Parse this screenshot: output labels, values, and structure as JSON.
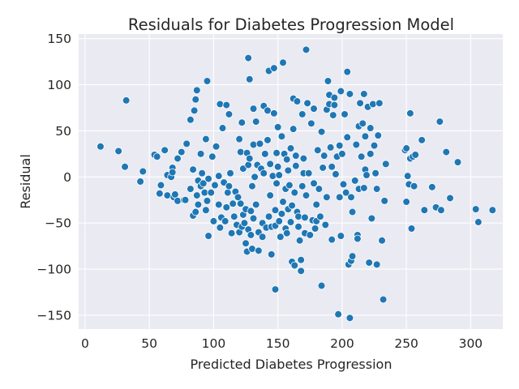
{
  "chart_data": {
    "type": "scatter",
    "title": "Residuals for Diabetes Progression Model",
    "xlabel": "Predicted Diabetes Progression",
    "ylabel": "Residual",
    "xlim": [
      -5,
      325
    ],
    "ylim": [
      -165,
      155
    ],
    "xticks": [
      0,
      50,
      100,
      150,
      200,
      250,
      300
    ],
    "yticks": [
      -150,
      -100,
      -50,
      0,
      50,
      100,
      150
    ],
    "grid": true,
    "colors": {
      "background": "#eaeaf2",
      "point": "#1f77b4"
    },
    "points": [
      [
        12,
        33
      ],
      [
        26,
        28
      ],
      [
        31,
        11
      ],
      [
        32,
        83
      ],
      [
        43,
        -5
      ],
      [
        45,
        6
      ],
      [
        54,
        24
      ],
      [
        56,
        22
      ],
      [
        58,
        -18
      ],
      [
        59,
        -9
      ],
      [
        62,
        29
      ],
      [
        64,
        -20
      ],
      [
        64,
        2
      ],
      [
        67,
        0
      ],
      [
        68,
        10
      ],
      [
        68,
        5
      ],
      [
        69,
        -22
      ],
      [
        70,
        -19
      ],
      [
        72,
        -26
      ],
      [
        72,
        20
      ],
      [
        75,
        27
      ],
      [
        77,
        -25
      ],
      [
        78,
        -25
      ],
      [
        79,
        36
      ],
      [
        82,
        -13
      ],
      [
        82,
        62
      ],
      [
        84,
        -42
      ],
      [
        84,
        8
      ],
      [
        85,
        72
      ],
      [
        86,
        84
      ],
      [
        86,
        -38
      ],
      [
        87,
        94
      ],
      [
        87,
        -20
      ],
      [
        88,
        -4
      ],
      [
        88,
        -30
      ],
      [
        90,
        -10
      ],
      [
        90,
        25
      ],
      [
        91,
        4
      ],
      [
        92,
        -7
      ],
      [
        93,
        -17
      ],
      [
        94,
        -36
      ],
      [
        94,
        41
      ],
      [
        95,
        -26
      ],
      [
        95,
        104
      ],
      [
        96,
        -64
      ],
      [
        96,
        -2
      ],
      [
        98,
        -17
      ],
      [
        99,
        22
      ],
      [
        100,
        -48
      ],
      [
        101,
        -9
      ],
      [
        102,
        33
      ],
      [
        104,
        -30
      ],
      [
        104,
        1
      ],
      [
        105,
        -55
      ],
      [
        105,
        79
      ],
      [
        106,
        -44
      ],
      [
        107,
        53
      ],
      [
        108,
        -6
      ],
      [
        109,
        -48
      ],
      [
        110,
        -33
      ],
      [
        110,
        78
      ],
      [
        111,
        -17
      ],
      [
        112,
        -10
      ],
      [
        112,
        68
      ],
      [
        113,
        4
      ],
      [
        114,
        -61
      ],
      [
        115,
        -29
      ],
      [
        116,
        -43
      ],
      [
        117,
        -16
      ],
      [
        118,
        -52
      ],
      [
        119,
        -22
      ],
      [
        120,
        41
      ],
      [
        120,
        -60
      ],
      [
        121,
        27
      ],
      [
        121,
        -29
      ],
      [
        122,
        59
      ],
      [
        122,
        -54
      ],
      [
        123,
        9
      ],
      [
        123,
        -41
      ],
      [
        124,
        -50
      ],
      [
        125,
        -72
      ],
      [
        125,
        -35
      ],
      [
        126,
        26
      ],
      [
        126,
        -81
      ],
      [
        127,
        13
      ],
      [
        127,
        129
      ],
      [
        127,
        -57
      ],
      [
        128,
        20
      ],
      [
        128,
        106
      ],
      [
        129,
        -63
      ],
      [
        129,
        -37
      ],
      [
        130,
        -78
      ],
      [
        130,
        -10
      ],
      [
        131,
        35
      ],
      [
        131,
        74
      ],
      [
        131,
        -45
      ],
      [
        132,
        0
      ],
      [
        133,
        -30
      ],
      [
        133,
        60
      ],
      [
        134,
        13
      ],
      [
        135,
        -60
      ],
      [
        135,
        -80
      ],
      [
        136,
        36
      ],
      [
        137,
        9
      ],
      [
        138,
        -50
      ],
      [
        138,
        -65
      ],
      [
        139,
        4
      ],
      [
        139,
        77
      ],
      [
        140,
        25
      ],
      [
        141,
        -55
      ],
      [
        142,
        72
      ],
      [
        142,
        40
      ],
      [
        143,
        -43
      ],
      [
        143,
        115
      ],
      [
        144,
        -20
      ],
      [
        144,
        14
      ],
      [
        145,
        -84
      ],
      [
        145,
        -54
      ],
      [
        146,
        1
      ],
      [
        147,
        118
      ],
      [
        147,
        69
      ],
      [
        148,
        -36
      ],
      [
        148,
        -122
      ],
      [
        148,
        -53
      ],
      [
        149,
        -7
      ],
      [
        149,
        26
      ],
      [
        150,
        54
      ],
      [
        150,
        11
      ],
      [
        151,
        -48
      ],
      [
        151,
        2
      ],
      [
        152,
        -65
      ],
      [
        153,
        44
      ],
      [
        153,
        -40
      ],
      [
        154,
        124
      ],
      [
        154,
        -27
      ],
      [
        155,
        25
      ],
      [
        156,
        -13
      ],
      [
        156,
        -56
      ],
      [
        157,
        -61
      ],
      [
        157,
        19
      ],
      [
        158,
        7
      ],
      [
        158,
        -35
      ],
      [
        159,
        -9
      ],
      [
        160,
        31
      ],
      [
        160,
        -49
      ],
      [
        161,
        -92
      ],
      [
        161,
        -31
      ],
      [
        162,
        85
      ],
      [
        162,
        52
      ],
      [
        163,
        -96
      ],
      [
        163,
        -17
      ],
      [
        164,
        23
      ],
      [
        164,
        12
      ],
      [
        165,
        -38
      ],
      [
        165,
        82
      ],
      [
        166,
        -54
      ],
      [
        166,
        -43
      ],
      [
        167,
        -69
      ],
      [
        168,
        -102
      ],
      [
        168,
        -90
      ],
      [
        169,
        68
      ],
      [
        169,
        -10
      ],
      [
        170,
        4
      ],
      [
        170,
        20
      ],
      [
        171,
        -44
      ],
      [
        171,
        -61
      ],
      [
        172,
        138
      ],
      [
        172,
        -20
      ],
      [
        173,
        80
      ],
      [
        174,
        4
      ],
      [
        175,
        -63
      ],
      [
        176,
        58
      ],
      [
        177,
        -47
      ],
      [
        178,
        -7
      ],
      [
        178,
        74
      ],
      [
        179,
        -56
      ],
      [
        180,
        -30
      ],
      [
        180,
        -48
      ],
      [
        181,
        29
      ],
      [
        182,
        -13
      ],
      [
        183,
        -43
      ],
      [
        184,
        -118
      ],
      [
        184,
        49
      ],
      [
        185,
        10
      ],
      [
        186,
        23
      ],
      [
        187,
        -52
      ],
      [
        188,
        73
      ],
      [
        188,
        -22
      ],
      [
        189,
        104
      ],
      [
        190,
        89
      ],
      [
        190,
        79
      ],
      [
        191,
        32
      ],
      [
        192,
        -68
      ],
      [
        192,
        11
      ],
      [
        193,
        67
      ],
      [
        194,
        86
      ],
      [
        194,
        78
      ],
      [
        195,
        3
      ],
      [
        196,
        22
      ],
      [
        197,
        -149
      ],
      [
        198,
        -22
      ],
      [
        198,
        34
      ],
      [
        199,
        -64
      ],
      [
        199,
        93
      ],
      [
        200,
        25
      ],
      [
        201,
        -8
      ],
      [
        202,
        68
      ],
      [
        203,
        -17
      ],
      [
        204,
        114
      ],
      [
        204,
        43
      ],
      [
        205,
        -95
      ],
      [
        206,
        90
      ],
      [
        206,
        -153
      ],
      [
        207,
        -22
      ],
      [
        207,
        -91
      ],
      [
        208,
        -38
      ],
      [
        208,
        -86
      ],
      [
        210,
        -4
      ],
      [
        211,
        35
      ],
      [
        212,
        -63
      ],
      [
        212,
        -67
      ],
      [
        213,
        55
      ],
      [
        213,
        -13
      ],
      [
        214,
        80
      ],
      [
        215,
        22
      ],
      [
        216,
        58
      ],
      [
        217,
        90
      ],
      [
        217,
        -12
      ],
      [
        218,
        44
      ],
      [
        218,
        8
      ],
      [
        219,
        2
      ],
      [
        220,
        76
      ],
      [
        221,
        -93
      ],
      [
        222,
        53
      ],
      [
        222,
        25
      ],
      [
        223,
        -45
      ],
      [
        224,
        79
      ],
      [
        225,
        34
      ],
      [
        226,
        4
      ],
      [
        227,
        -95
      ],
      [
        227,
        -13
      ],
      [
        228,
        45
      ],
      [
        229,
        80
      ],
      [
        231,
        -69
      ],
      [
        232,
        -133
      ],
      [
        233,
        -26
      ],
      [
        234,
        14
      ],
      [
        249,
        29
      ],
      [
        250,
        -27
      ],
      [
        250,
        31
      ],
      [
        251,
        1
      ],
      [
        252,
        -8
      ],
      [
        253,
        20
      ],
      [
        253,
        69
      ],
      [
        254,
        -56
      ],
      [
        255,
        22
      ],
      [
        256,
        -10
      ],
      [
        257,
        24
      ],
      [
        262,
        40
      ],
      [
        264,
        -36
      ],
      [
        270,
        -11
      ],
      [
        273,
        -33
      ],
      [
        276,
        60
      ],
      [
        277,
        -36
      ],
      [
        281,
        27
      ],
      [
        284,
        -23
      ],
      [
        290,
        16
      ],
      [
        304,
        -35
      ],
      [
        306,
        -49
      ],
      [
        317,
        -36
      ]
    ]
  }
}
